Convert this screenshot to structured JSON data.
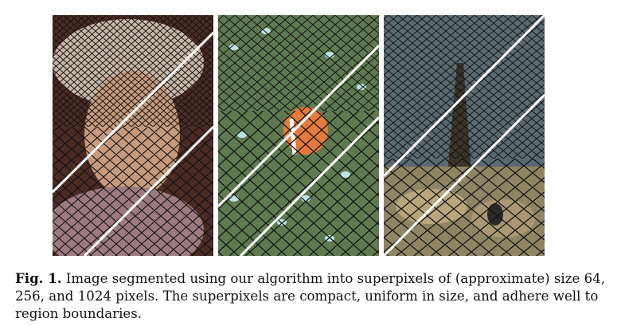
{
  "figure": {
    "panels": [
      {
        "subject": "woman-portrait",
        "palette": [
          "#c8a080",
          "#8a5a48",
          "#3a1e18",
          "#d9c2b4",
          "#6e4038"
        ]
      },
      {
        "subject": "clownfish-anemone",
        "palette": [
          "#6f8a5e",
          "#4f6a44",
          "#9bb58a",
          "#c9e6e6",
          "#e07a3a"
        ]
      },
      {
        "subject": "tree-and-rocks",
        "palette": [
          "#7a7560",
          "#4d4a3a",
          "#a99d76",
          "#c7b98f",
          "#5b6c74"
        ]
      }
    ],
    "caption_label": "Fig. 1.",
    "caption_text": " Image segmented using our algorithm into superpixels of (approximate) size 64, 256, and 1024 pixels. The superpixels are compact, uniform in size, and adhere well to region boundaries."
  }
}
